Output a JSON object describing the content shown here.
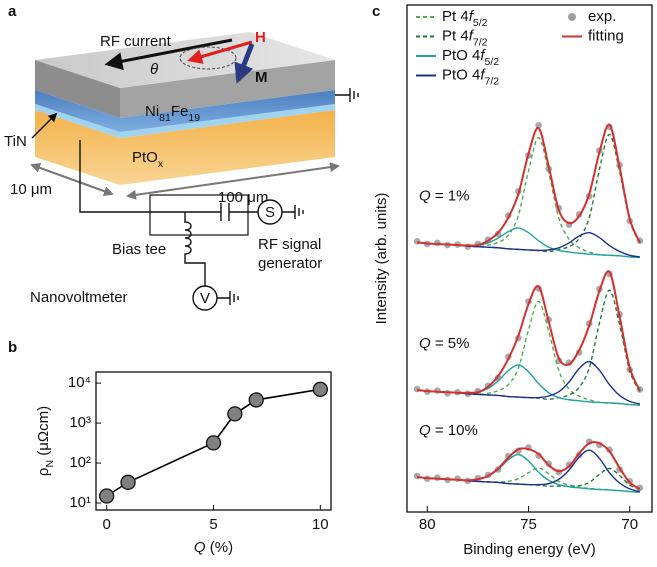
{
  "diagram": {
    "panel_label": "a",
    "rf_current": "RF current",
    "theta": "θ",
    "h": "H",
    "m": "M",
    "layer_top": "Ni81Fe19",
    "tin": "TiN",
    "ptox": "PtOx",
    "depth": "10 μm",
    "length": "100 μm",
    "source": "S",
    "bias_tee": "Bias tee",
    "generator": [
      "RF signal",
      "generator"
    ],
    "nanovoltmeter": "Nanovoltmeter",
    "voltmeter": "V"
  },
  "chart_data": [
    {
      "type": "line",
      "panel_label": "b",
      "x": [
        0,
        1,
        5,
        6,
        7,
        10
      ],
      "values": [
        15,
        33,
        320,
        1700,
        3800,
        7000
      ],
      "color": "#808080",
      "line_color": "#000000",
      "log_y": true,
      "xlim": [
        -0.5,
        10.5
      ],
      "ylim": [
        6.7,
        19000
      ],
      "xticks": [
        0,
        5,
        10
      ],
      "yticks": [
        {
          "value": 10,
          "label": "10¹"
        },
        {
          "value": 100,
          "label": "10²"
        },
        {
          "value": 1000,
          "label": "10³"
        },
        {
          "value": 10000,
          "label": "10⁴"
        }
      ],
      "xlabel": "Q (%)",
      "ylabel": "ρN (μΩcm)"
    },
    {
      "type": "spectrum",
      "panel_label": "c",
      "legend": "top",
      "xlabel": "Binding energy (eV)",
      "ylabel": "Intensity (arb. units)",
      "xlim": [
        81,
        68.9
      ],
      "ylim": [
        5.6,
        100
      ],
      "xticks": [
        80,
        75,
        70
      ],
      "x": [
        80.5,
        80,
        79.5,
        79,
        78.5,
        78,
        77.5,
        77,
        76.5,
        76,
        75.5,
        75,
        74.5,
        74,
        73.5,
        73,
        72.5,
        72,
        71.5,
        71,
        70.5,
        70,
        69.5
      ],
      "series": [
        {
          "name": "Pt 4f5/2",
          "color": "#4cae4c",
          "style": "dashed"
        },
        {
          "name": "Pt 4f7/2",
          "color": "#1e7b34",
          "style": "dashed"
        },
        {
          "name": "PtO 4f5/2",
          "color": "#1fa2a0",
          "style": "line"
        },
        {
          "name": "PtO 4f7/2",
          "color": "#1c2e8c",
          "style": "line"
        },
        {
          "name": "exp.",
          "color": "#a0a0a0",
          "style": "dots"
        },
        {
          "name": "fitting",
          "color": "#d62f2f",
          "style": "line"
        }
      ],
      "stacks": [
        {
          "label": "Q = 1%",
          "values": [
            [
              55.8,
              55.6,
              55.5,
              55.4,
              55.3,
              55.1,
              55.0,
              55.3,
              55.8,
              57.1,
              60.8,
              69.1,
              75.3,
              68.8,
              60.3,
              56.4,
              54.8,
              54.0,
              53.5,
              53.4,
              53.3,
              53.1,
              53.0
            ],
            [
              55.8,
              55.6,
              55.5,
              55.4,
              55.3,
              55.1,
              55.0,
              54.9,
              54.8,
              54.6,
              54.5,
              54.4,
              54.3,
              54.1,
              54.5,
              55.0,
              56.5,
              60.4,
              69.3,
              75.9,
              69.0,
              59.9,
              55.7
            ],
            [
              55.8,
              55.6,
              55.5,
              55.4,
              55.3,
              55.2,
              55.3,
              55.7,
              56.6,
              57.8,
              58.5,
              57.6,
              56.1,
              54.9,
              54.3,
              54.0,
              53.8,
              53.6,
              53.5,
              53.4,
              53.3,
              53.1,
              53.0
            ],
            [
              55.8,
              55.6,
              55.5,
              55.4,
              55.3,
              55.1,
              55.0,
              54.9,
              54.8,
              54.6,
              54.5,
              54.4,
              54.3,
              54.4,
              54.8,
              55.7,
              57.0,
              57.6,
              56.7,
              55.2,
              54.1,
              53.4,
              53.1
            ],
            [
              56.0,
              55.5,
              55.7,
              55.3,
              55.4,
              55.0,
              55.5,
              56.3,
              57.4,
              60.8,
              65.3,
              72.0,
              77.6,
              69.5,
              62.2,
              59.1,
              61.0,
              64.4,
              72.9,
              77.3,
              70.2,
              59.8,
              56.1
            ],
            [
              55.8,
              55.6,
              55.5,
              55.4,
              55.3,
              55.2,
              55.3,
              56.1,
              57.6,
              60.4,
              64.8,
              72.3,
              77.1,
              69.9,
              61.8,
              59.4,
              60.7,
              64.8,
              72.5,
              77.7,
              69.8,
              60.2,
              55.8
            ]
          ]
        },
        {
          "label": "Q = 5%",
          "values": [
            [
              28.3,
              28.1,
              28.0,
              27.9,
              27.8,
              27.6,
              27.5,
              27.7,
              28.2,
              29.3,
              32.4,
              39.5,
              44.8,
              39.2,
              31.9,
              28.5,
              27.2,
              26.5,
              26.0,
              25.9,
              25.8,
              25.6,
              25.5
            ],
            [
              28.3,
              28.1,
              28.0,
              27.9,
              27.8,
              27.6,
              27.5,
              27.4,
              27.3,
              27.1,
              27.0,
              26.9,
              26.8,
              26.6,
              26.9,
              27.4,
              28.8,
              32.4,
              40.7,
              46.9,
              40.5,
              31.9,
              28.0
            ],
            [
              28.3,
              28.1,
              28.0,
              27.9,
              27.8,
              27.8,
              27.9,
              28.6,
              30.0,
              31.9,
              33.0,
              31.7,
              29.5,
              27.8,
              26.9,
              26.5,
              26.3,
              26.1,
              26.0,
              25.9,
              25.8,
              25.6,
              25.5
            ],
            [
              28.3,
              28.1,
              28.0,
              27.9,
              27.8,
              27.6,
              27.5,
              27.4,
              27.3,
              27.1,
              27.0,
              26.9,
              26.9,
              27.2,
              28.0,
              29.8,
              32.3,
              33.6,
              32.0,
              29.3,
              27.3,
              26.2,
              25.7
            ],
            [
              28.5,
              28.0,
              28.2,
              27.7,
              27.9,
              27.6,
              28.1,
              29.1,
              30.6,
              34.5,
              38.0,
              44.8,
              47.2,
              41.4,
              33.8,
              33.4,
              35.3,
              40.7,
              47.1,
              49.9,
              42.4,
              32.1,
              28.4
            ],
            [
              28.3,
              28.1,
              28.0,
              27.9,
              27.8,
              27.8,
              27.9,
              28.9,
              30.9,
              34.1,
              38.4,
              44.3,
              47.6,
              41.0,
              34.2,
              33.1,
              35.7,
              40.3,
              46.7,
              50.3,
              42.0,
              32.5,
              28.2
            ]
          ]
        },
        {
          "label": "Q = 10%",
          "values": [
            [
              12.1,
              11.9,
              11.8,
              11.7,
              11.6,
              11.4,
              11.3,
              11.2,
              11.2,
              11.3,
              11.8,
              12.9,
              13.8,
              12.7,
              11.3,
              10.6,
              10.2,
              10.0,
              9.8,
              9.7,
              9.6,
              9.4,
              9.3
            ],
            [
              12.1,
              11.9,
              11.8,
              11.7,
              11.6,
              11.4,
              11.3,
              11.2,
              11.1,
              10.9,
              10.8,
              10.7,
              10.6,
              10.4,
              10.4,
              10.4,
              10.5,
              11.1,
              12.6,
              13.7,
              12.4,
              10.6,
              9.8
            ],
            [
              12.1,
              11.9,
              11.8,
              11.7,
              11.6,
              11.5,
              11.7,
              12.3,
              13.5,
              15.3,
              16.3,
              15.1,
              13.0,
              11.5,
              10.7,
              10.3,
              10.1,
              9.9,
              9.8,
              9.7,
              9.6,
              9.4,
              9.3
            ],
            [
              12.1,
              11.9,
              11.8,
              11.7,
              11.6,
              11.4,
              11.3,
              11.2,
              11.1,
              10.9,
              10.8,
              10.7,
              10.7,
              10.9,
              11.7,
              13.4,
              15.8,
              17.1,
              15.6,
              12.9,
              11.0,
              9.9,
              9.4
            ],
            [
              12.3,
              11.8,
              12.0,
              11.6,
              11.8,
              11.4,
              11.9,
              12.5,
              13.5,
              16.0,
              17.0,
              17.6,
              16.1,
              14.6,
              13.0,
              14.4,
              16.2,
              18.7,
              18.1,
              17.2,
              13.5,
              11.3,
              10.1
            ],
            [
              12.1,
              11.9,
              11.8,
              11.7,
              11.6,
              11.5,
              11.7,
              12.3,
              13.7,
              15.7,
              17.3,
              17.3,
              16.4,
              14.3,
              13.2,
              14.1,
              16.5,
              18.4,
              18.4,
              16.9,
              13.8,
              11.1,
              9.9
            ]
          ]
        }
      ]
    }
  ]
}
